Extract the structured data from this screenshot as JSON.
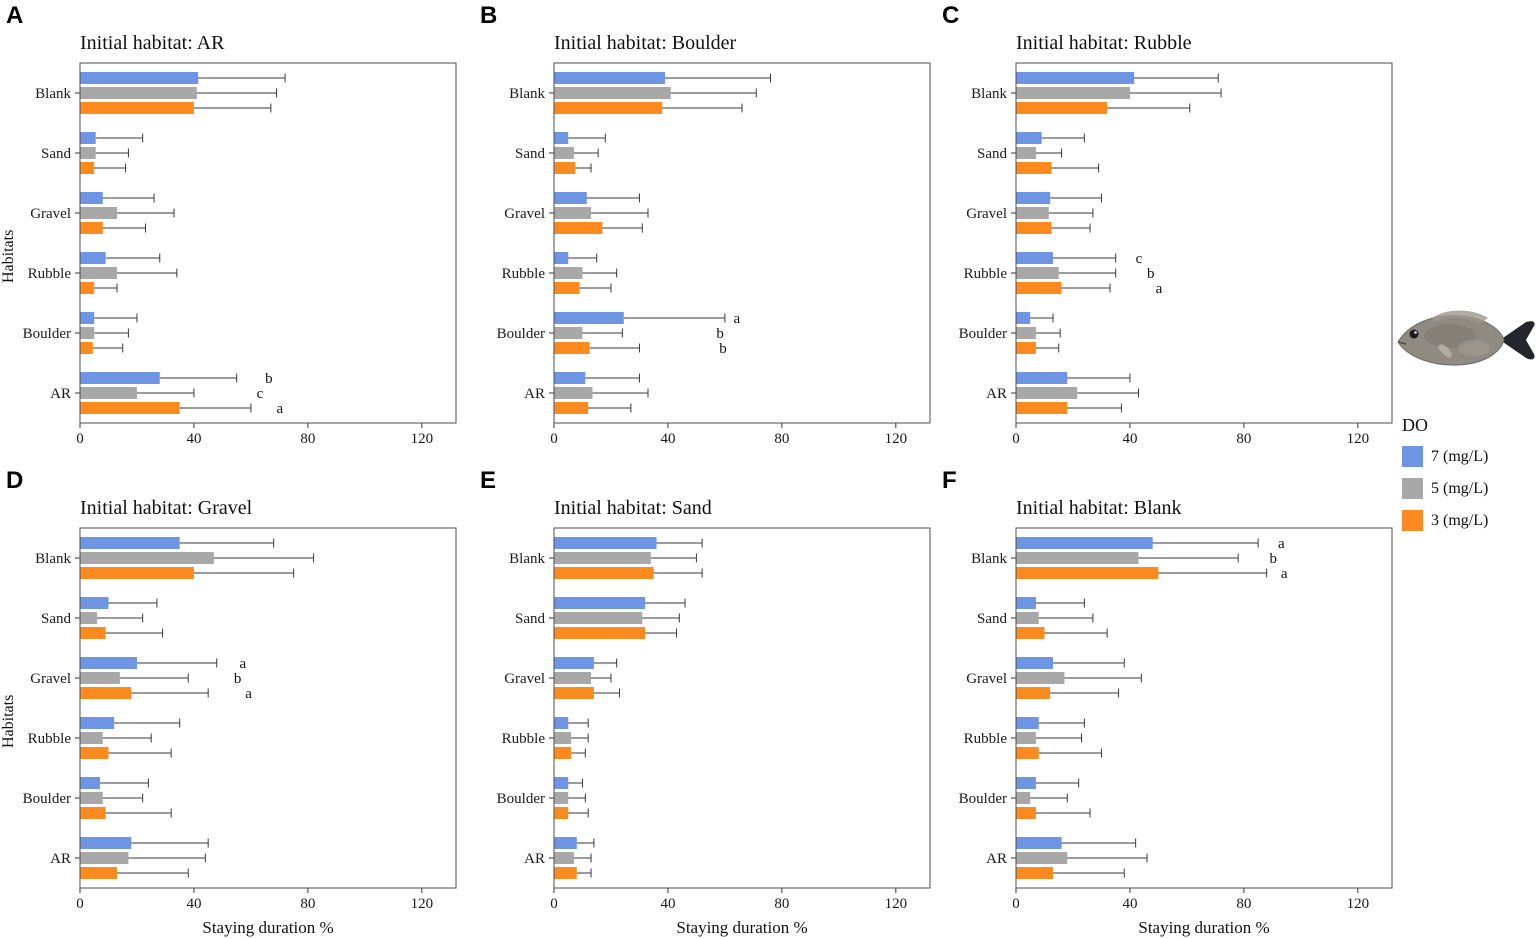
{
  "legend": {
    "title": "DO",
    "entries": [
      {
        "label": "7 (mg/L)",
        "color": "#6D95E4"
      },
      {
        "label": "5 (mg/L)",
        "color": "#A8A8A8"
      },
      {
        "label": "3 (mg/L)",
        "color": "#FB8B1E"
      }
    ]
  },
  "fish": {
    "name": "fish-photo"
  },
  "chart_data": [
    {
      "panel_label": "A",
      "type": "bar",
      "orientation": "horizontal",
      "title": "Initial habitat: AR",
      "categories": [
        "Blank",
        "Sand",
        "Gravel",
        "Rubble",
        "Boulder",
        "AR"
      ],
      "series": [
        {
          "name": "7 (mg/L)",
          "color": "#6D95E4",
          "values": [
            41.5,
            5.5,
            8,
            9,
            5,
            28
          ],
          "errors": [
            72,
            22,
            26,
            28,
            20,
            55
          ]
        },
        {
          "name": "5 (mg/L)",
          "color": "#A8A8A8",
          "values": [
            41,
            5.5,
            13,
            13,
            5,
            20
          ],
          "errors": [
            69,
            17,
            33,
            34,
            17,
            40
          ]
        },
        {
          "name": "3 (mg/L)",
          "color": "#FB8B1E",
          "values": [
            40,
            5,
            8,
            5,
            4.5,
            35
          ],
          "errors": [
            67,
            16,
            23,
            13,
            15,
            60
          ]
        }
      ],
      "annotations": [
        {
          "category": "AR",
          "letters": [
            "b",
            "c",
            "a"
          ],
          "x": [
            65,
            62,
            69
          ]
        }
      ],
      "xlabel": "",
      "ylabel": "Habitats",
      "xlim": [
        0,
        132
      ],
      "xticks": [
        0,
        40,
        80,
        120
      ]
    },
    {
      "panel_label": "B",
      "type": "bar",
      "orientation": "horizontal",
      "title": "Initial habitat: Boulder",
      "categories": [
        "Blank",
        "Sand",
        "Gravel",
        "Rubble",
        "Boulder",
        "AR"
      ],
      "series": [
        {
          "name": "7 (mg/L)",
          "color": "#6D95E4",
          "values": [
            39,
            5,
            11.5,
            5,
            24.5,
            11
          ],
          "errors": [
            76,
            18,
            30,
            15,
            60,
            30
          ]
        },
        {
          "name": "5 (mg/L)",
          "color": "#A8A8A8",
          "values": [
            41,
            7,
            13,
            10,
            10,
            13.5
          ],
          "errors": [
            71,
            15.5,
            33,
            22,
            24,
            33
          ]
        },
        {
          "name": "3 (mg/L)",
          "color": "#FB8B1E",
          "values": [
            38,
            7.5,
            17,
            9,
            12.5,
            12
          ],
          "errors": [
            66,
            13,
            31,
            20,
            30,
            27
          ]
        }
      ],
      "annotations": [
        {
          "category": "Boulder",
          "letters": [
            "a",
            "b",
            "b"
          ],
          "x": [
            63,
            57,
            58
          ]
        }
      ],
      "xlabel": "",
      "ylabel": "",
      "xlim": [
        0,
        132
      ],
      "xticks": [
        0,
        40,
        80,
        120
      ]
    },
    {
      "panel_label": "C",
      "type": "bar",
      "orientation": "horizontal",
      "title": "Initial habitat: Rubble",
      "categories": [
        "Blank",
        "Sand",
        "Gravel",
        "Rubble",
        "Boulder",
        "AR"
      ],
      "series": [
        {
          "name": "7 (mg/L)",
          "color": "#6D95E4",
          "values": [
            41.5,
            9,
            12,
            13,
            5,
            18
          ],
          "errors": [
            71,
            24,
            30,
            35,
            13,
            40
          ]
        },
        {
          "name": "5 (mg/L)",
          "color": "#A8A8A8",
          "values": [
            40,
            7,
            11.5,
            15,
            7,
            21.5
          ],
          "errors": [
            72,
            16,
            27,
            35,
            15.5,
            43
          ]
        },
        {
          "name": "3 (mg/L)",
          "color": "#FB8B1E",
          "values": [
            32,
            12.5,
            12.5,
            16,
            7,
            18
          ],
          "errors": [
            61,
            29,
            26,
            33,
            15,
            37
          ]
        }
      ],
      "annotations": [
        {
          "category": "Rubble",
          "letters": [
            "c",
            "b",
            "a"
          ],
          "x": [
            42,
            46,
            49
          ]
        }
      ],
      "xlabel": "",
      "ylabel": "",
      "xlim": [
        0,
        132
      ],
      "xticks": [
        0,
        40,
        80,
        120
      ]
    },
    {
      "panel_label": "D",
      "type": "bar",
      "orientation": "horizontal",
      "title": "Initial habitat: Gravel",
      "categories": [
        "Blank",
        "Sand",
        "Gravel",
        "Rubble",
        "Boulder",
        "AR"
      ],
      "series": [
        {
          "name": "7 (mg/L)",
          "color": "#6D95E4",
          "values": [
            35,
            10,
            20,
            12,
            7,
            18
          ],
          "errors": [
            68,
            27,
            48,
            35,
            24,
            45
          ]
        },
        {
          "name": "5 (mg/L)",
          "color": "#A8A8A8",
          "values": [
            47,
            6,
            14,
            8,
            8,
            17
          ],
          "errors": [
            82,
            22,
            38,
            25,
            22,
            44
          ]
        },
        {
          "name": "3 (mg/L)",
          "color": "#FB8B1E",
          "values": [
            40,
            9,
            18,
            10,
            9,
            13
          ],
          "errors": [
            75,
            29,
            45,
            32,
            32,
            38
          ]
        }
      ],
      "annotations": [
        {
          "category": "Gravel",
          "letters": [
            "a",
            "b",
            "a"
          ],
          "x": [
            56,
            54,
            58
          ]
        }
      ],
      "xlabel": "Staying duration %",
      "ylabel": "Habitats",
      "xlim": [
        0,
        132
      ],
      "xticks": [
        0,
        40,
        80,
        120
      ]
    },
    {
      "panel_label": "E",
      "type": "bar",
      "orientation": "horizontal",
      "title": "Initial habitat: Sand",
      "categories": [
        "Blank",
        "Sand",
        "Gravel",
        "Rubble",
        "Boulder",
        "AR"
      ],
      "series": [
        {
          "name": "7 (mg/L)",
          "color": "#6D95E4",
          "values": [
            36,
            32,
            14,
            5,
            5,
            8
          ],
          "errors": [
            52,
            46,
            22,
            12,
            10,
            14
          ]
        },
        {
          "name": "5 (mg/L)",
          "color": "#A8A8A8",
          "values": [
            34,
            31,
            13,
            6,
            5,
            7
          ],
          "errors": [
            50,
            44,
            20,
            12,
            11,
            13
          ]
        },
        {
          "name": "3 (mg/L)",
          "color": "#FB8B1E",
          "values": [
            35,
            32,
            14,
            6,
            5,
            8
          ],
          "errors": [
            52,
            43,
            23,
            11,
            12,
            13
          ]
        }
      ],
      "annotations": [],
      "xlabel": "Staying duration %",
      "ylabel": "",
      "xlim": [
        0,
        132
      ],
      "xticks": [
        0,
        40,
        80,
        120
      ]
    },
    {
      "panel_label": "F",
      "type": "bar",
      "orientation": "horizontal",
      "title": "Initial habitat: Blank",
      "categories": [
        "Blank",
        "Sand",
        "Gravel",
        "Rubble",
        "Boulder",
        "AR"
      ],
      "series": [
        {
          "name": "7 (mg/L)",
          "color": "#6D95E4",
          "values": [
            48,
            7,
            13,
            8,
            7,
            16
          ],
          "errors": [
            85,
            24,
            38,
            24,
            22,
            42
          ]
        },
        {
          "name": "5 (mg/L)",
          "color": "#A8A8A8",
          "values": [
            43,
            8,
            17,
            7,
            5,
            18
          ],
          "errors": [
            78,
            27,
            44,
            23,
            18,
            46
          ]
        },
        {
          "name": "3 (mg/L)",
          "color": "#FB8B1E",
          "values": [
            50,
            10,
            12,
            8,
            7,
            13
          ],
          "errors": [
            88,
            32,
            36,
            30,
            26,
            38
          ]
        }
      ],
      "annotations": [
        {
          "category": "Blank",
          "letters": [
            "a",
            "b",
            "a"
          ],
          "x": [
            92,
            89,
            93
          ]
        }
      ],
      "xlabel": "Staying duration %",
      "ylabel": "",
      "xlim": [
        0,
        132
      ],
      "xticks": [
        0,
        40,
        80,
        120
      ]
    }
  ]
}
